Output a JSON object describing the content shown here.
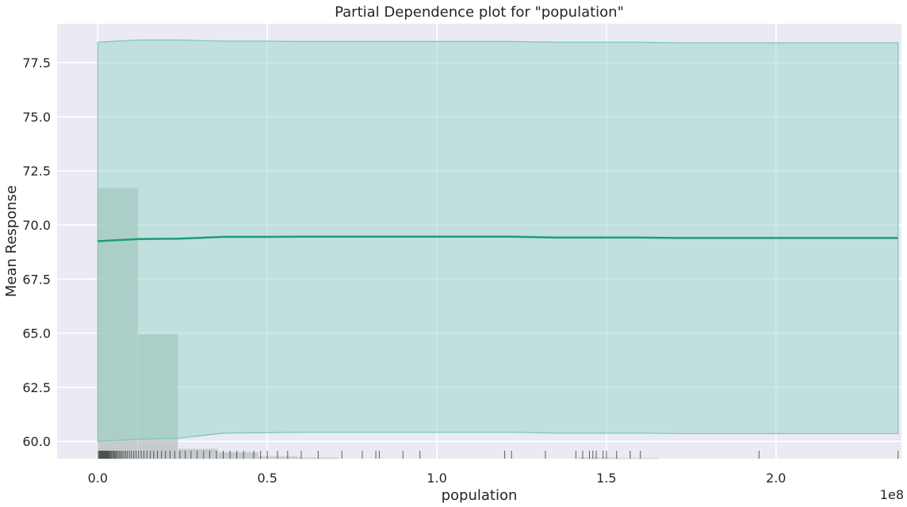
{
  "chart_data": {
    "type": "line",
    "title": "Partial Dependence plot for \"population\"",
    "xlabel": "population",
    "ylabel": "Mean Response",
    "x_offset_label": "1e8",
    "xlim": [
      -0.12,
      2.37
    ],
    "ylim": [
      59.2,
      79.3
    ],
    "x_ticks": [
      0.0,
      0.5,
      1.0,
      1.5,
      2.0
    ],
    "x_tick_labels": [
      "0.0",
      "0.5",
      "1.0",
      "1.5",
      "2.0"
    ],
    "y_ticks": [
      60.0,
      62.5,
      65.0,
      67.5,
      70.0,
      72.5,
      75.0,
      77.5
    ],
    "y_tick_labels": [
      "60.0",
      "62.5",
      "65.0",
      "67.5",
      "70.0",
      "72.5",
      "75.0",
      "77.5"
    ],
    "grid": true,
    "series": [
      {
        "x": [
          0.0,
          0.12,
          0.24,
          0.37,
          0.49,
          0.61,
          0.73,
          0.86,
          0.98,
          1.1,
          1.22,
          1.35,
          1.47,
          1.59,
          1.71,
          1.84,
          1.96,
          2.08,
          2.2,
          2.36
        ],
        "values": [
          69.25,
          69.35,
          69.37,
          69.45,
          69.45,
          69.46,
          69.46,
          69.46,
          69.46,
          69.46,
          69.46,
          69.42,
          69.42,
          69.42,
          69.4,
          69.4,
          69.4,
          69.4,
          69.4,
          69.4
        ],
        "upper": [
          78.45,
          78.55,
          78.55,
          78.5,
          78.5,
          78.48,
          78.48,
          78.48,
          78.48,
          78.48,
          78.48,
          78.45,
          78.45,
          78.45,
          78.42,
          78.42,
          78.42,
          78.42,
          78.42,
          78.42
        ],
        "lower": [
          60.0,
          60.1,
          60.15,
          60.38,
          60.4,
          60.42,
          60.42,
          60.42,
          60.42,
          60.42,
          60.42,
          60.38,
          60.38,
          60.38,
          60.36,
          60.36,
          60.36,
          60.36,
          60.36,
          60.36
        ],
        "color": "#1b9e77"
      }
    ],
    "histogram": {
      "bins": [
        {
          "x0": 0.0,
          "x1": 0.118,
          "top": 71.7
        },
        {
          "x0": 0.118,
          "x1": 0.236,
          "top": 64.95
        },
        {
          "x0": 0.236,
          "x1": 0.354,
          "top": 59.65
        },
        {
          "x0": 0.354,
          "x1": 0.472,
          "top": 59.5
        },
        {
          "x0": 0.472,
          "x1": 0.59,
          "top": 59.3
        },
        {
          "x0": 0.59,
          "x1": 0.708,
          "top": 59.25
        },
        {
          "x0": 1.416,
          "x1": 1.534,
          "top": 59.25
        },
        {
          "x0": 1.534,
          "x1": 1.652,
          "top": 59.22
        }
      ],
      "color": "#b8c0c0"
    },
    "rug": [
      0.002,
      0.005,
      0.007,
      0.009,
      0.011,
      0.013,
      0.015,
      0.017,
      0.019,
      0.021,
      0.023,
      0.025,
      0.027,
      0.029,
      0.031,
      0.033,
      0.036,
      0.038,
      0.041,
      0.044,
      0.047,
      0.05,
      0.053,
      0.056,
      0.06,
      0.064,
      0.068,
      0.072,
      0.077,
      0.082,
      0.087,
      0.093,
      0.099,
      0.106,
      0.113,
      0.12,
      0.128,
      0.136,
      0.145,
      0.155,
      0.165,
      0.176,
      0.188,
      0.2,
      0.213,
      0.227,
      0.242,
      0.258,
      0.275,
      0.293,
      0.312,
      0.33,
      0.35,
      0.37,
      0.39,
      0.41,
      0.43,
      0.46,
      0.48,
      0.5,
      0.53,
      0.56,
      0.6,
      0.65,
      0.72,
      0.78,
      0.82,
      0.83,
      0.9,
      0.95,
      1.2,
      1.22,
      1.32,
      1.41,
      1.43,
      1.45,
      1.46,
      1.47,
      1.49,
      1.5,
      1.53,
      1.57,
      1.6,
      1.95,
      2.36
    ]
  }
}
